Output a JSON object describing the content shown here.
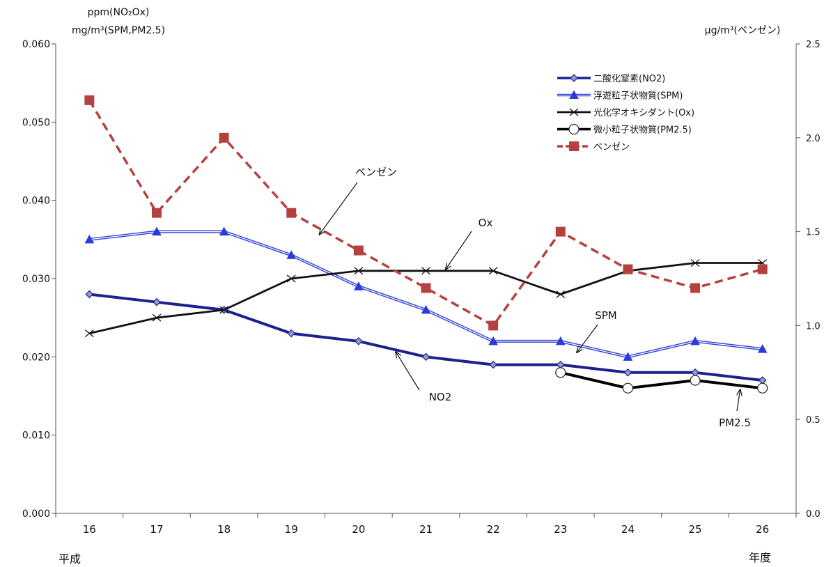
{
  "left_axis_title_line1": "ppm(NO₂Ox)",
  "left_axis_title_line2": "mg/m³(SPM,PM2.5)",
  "right_axis_title": "μg/m³(ベンゼン)",
  "era_label": "平成",
  "x_unit_label": "年度",
  "colors": {
    "no2": "#1f1f8f",
    "spm": "#2a3bd8",
    "ox": "#111111",
    "pm25": "#000000",
    "benzene": "#b5413f"
  },
  "chart_data": {
    "type": "line",
    "categories": [
      "16",
      "17",
      "18",
      "19",
      "20",
      "21",
      "22",
      "23",
      "24",
      "25",
      "26"
    ],
    "left_axis": {
      "ylim": [
        0,
        0.06
      ],
      "ticks": [
        "0.000",
        "0.010",
        "0.020",
        "0.030",
        "0.040",
        "0.050",
        "0.060"
      ]
    },
    "right_axis": {
      "ylim": [
        0,
        2.5
      ],
      "ticks": [
        "0.0",
        "0.5",
        "1.0",
        "1.5",
        "2.0",
        "2.5"
      ]
    },
    "legend_position": "top-right",
    "grid": false,
    "series": [
      {
        "key": "no2",
        "name": "二酸化窒素(NO2)",
        "axis": "left",
        "marker": "diamond",
        "values": [
          0.028,
          0.027,
          0.026,
          0.023,
          0.022,
          0.02,
          0.019,
          0.019,
          0.018,
          0.018,
          0.017
        ]
      },
      {
        "key": "spm",
        "name": "浮遊粒子状物質(SPM)",
        "axis": "left",
        "marker": "triangle",
        "values": [
          0.035,
          0.036,
          0.036,
          0.033,
          0.029,
          0.026,
          0.022,
          0.022,
          0.02,
          0.022,
          0.021
        ]
      },
      {
        "key": "ox",
        "name": "光化学オキシダント(Ox)",
        "axis": "left",
        "marker": "x",
        "values": [
          0.023,
          0.025,
          0.026,
          0.03,
          0.031,
          0.031,
          0.031,
          0.028,
          0.031,
          0.032,
          0.032
        ]
      },
      {
        "key": "pm25",
        "name": "微小粒子状物質(PM2.5)",
        "axis": "left",
        "marker": "circle",
        "values": [
          null,
          null,
          null,
          null,
          null,
          null,
          null,
          0.018,
          0.016,
          0.017,
          0.016
        ]
      },
      {
        "key": "benzene",
        "name": "ベンゼン",
        "axis": "right",
        "marker": "square",
        "values": [
          2.2,
          1.6,
          2.0,
          1.6,
          1.4,
          1.2,
          1.0,
          1.5,
          1.3,
          1.2,
          1.3
        ]
      }
    ],
    "annotations": [
      {
        "key": "benzene",
        "text": "ベンゼン"
      },
      {
        "key": "ox",
        "text": "Ox"
      },
      {
        "key": "spm",
        "text": "SPM"
      },
      {
        "key": "no2",
        "text": "NO2"
      },
      {
        "key": "pm25",
        "text": "PM2.5"
      }
    ]
  }
}
